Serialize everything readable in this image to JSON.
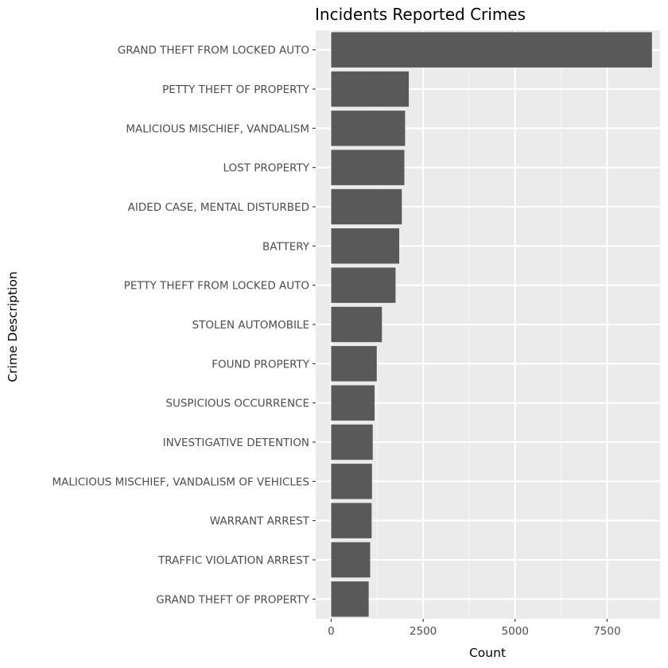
{
  "chart_data": {
    "type": "bar",
    "orientation": "horizontal",
    "title": "Incidents Reported Crimes",
    "xlabel": "Count",
    "ylabel": "Crime Description",
    "xlim": [
      -420,
      8940
    ],
    "xticks": [
      0,
      2500,
      5000,
      7500
    ],
    "xtick_labels": [
      "0",
      "2500",
      "5000",
      "7500"
    ],
    "grid": true,
    "legend": "none",
    "categories": [
      "GRAND THEFT FROM LOCKED AUTO",
      "PETTY THEFT OF PROPERTY",
      "MALICIOUS MISCHIEF, VANDALISM",
      "LOST PROPERTY",
      "AIDED CASE, MENTAL DISTURBED",
      "BATTERY",
      "PETTY THEFT FROM LOCKED AUTO",
      "STOLEN AUTOMOBILE",
      "FOUND PROPERTY",
      "SUSPICIOUS OCCURRENCE",
      "INVESTIGATIVE DETENTION",
      "MALICIOUS MISCHIEF, VANDALISM OF VEHICLES",
      "WARRANT ARREST",
      "TRAFFIC VIOLATION ARREST",
      "GRAND THEFT OF PROPERTY"
    ],
    "values": [
      8720,
      2110,
      2010,
      1990,
      1920,
      1850,
      1750,
      1380,
      1240,
      1180,
      1130,
      1110,
      1100,
      1060,
      1020
    ]
  },
  "colors": {
    "panel_background": "#ebebeb",
    "grid_major": "#ffffff",
    "grid_minor": "#f5f5f5",
    "bar_fill": "#595959",
    "tick_label": "#4d4d4d",
    "tick_mark": "#333333"
  }
}
